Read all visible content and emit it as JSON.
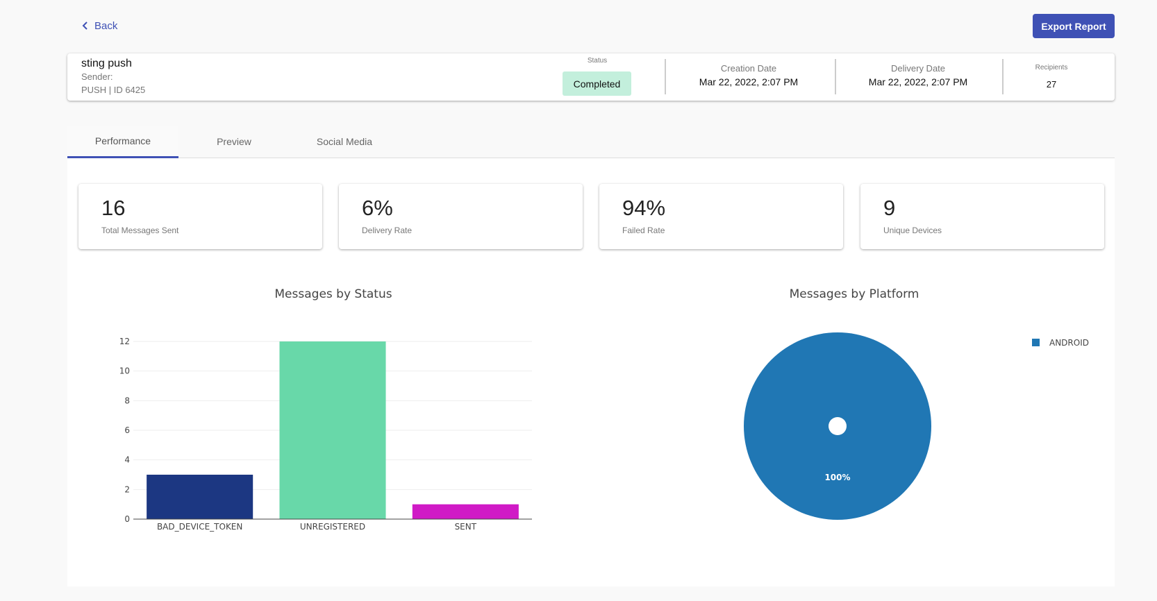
{
  "nav": {
    "back_label": "Back",
    "export_label": "Export Report"
  },
  "header": {
    "name": "sting push",
    "sender_label": "Sender:",
    "type_id": "PUSH | ID 6425",
    "status_label": "Status",
    "status_value": "Completed",
    "status_color": "#c3efdc",
    "creation_label": "Creation Date",
    "creation_value": "Mar 22, 2022, 2:07 PM",
    "delivery_label": "Delivery Date",
    "delivery_value": "Mar 22, 2022, 2:07 PM",
    "recipients_label": "Recipients",
    "recipients_value": "27"
  },
  "tabs": [
    {
      "label": "Performance",
      "active": true
    },
    {
      "label": "Preview",
      "active": false
    },
    {
      "label": "Social Media",
      "active": false
    }
  ],
  "stats": [
    {
      "value": "16",
      "label": "Total Messages Sent"
    },
    {
      "value": "6%",
      "label": "Delivery Rate"
    },
    {
      "value": "94%",
      "label": "Failed Rate"
    },
    {
      "value": "9",
      "label": "Unique Devices"
    }
  ],
  "chart_data": [
    {
      "type": "bar",
      "title": "Messages by Status",
      "categories": [
        "BAD_DEVICE_TOKEN",
        "UNREGISTERED",
        "SENT"
      ],
      "values": [
        3,
        12,
        1
      ],
      "colors": [
        "#1c3782",
        "#68d8a9",
        "#d01ac6"
      ],
      "ylim": [
        0,
        12
      ],
      "yticks": [
        0,
        2,
        4,
        6,
        8,
        10,
        12
      ],
      "grid": true
    },
    {
      "type": "pie",
      "title": "Messages by Platform",
      "labels": [
        "ANDROID"
      ],
      "values": [
        100
      ],
      "slice_labels": [
        "100%"
      ],
      "colors": [
        "#2077b4"
      ],
      "hole": true,
      "legend": "top-right"
    }
  ]
}
